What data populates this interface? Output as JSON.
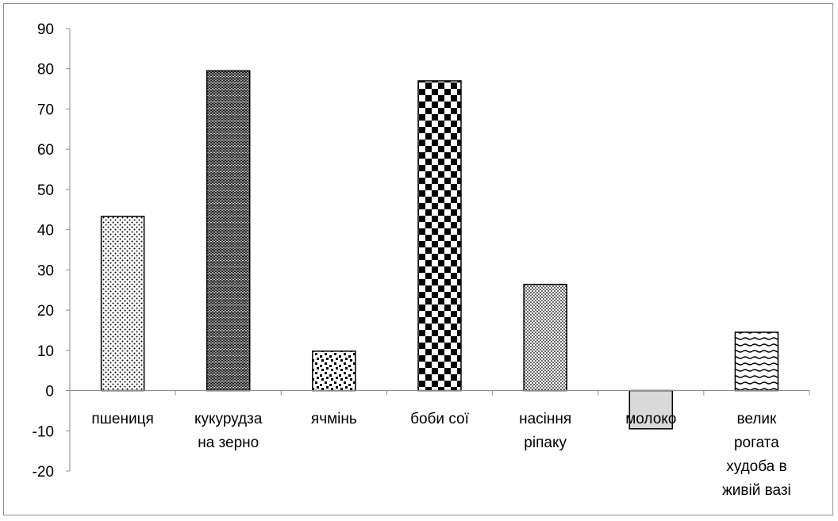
{
  "chart_data": {
    "type": "bar",
    "categories": [
      [
        "пшениця"
      ],
      [
        "кукурудза",
        "на зерно"
      ],
      [
        "ячмінь"
      ],
      [
        "боби сої"
      ],
      [
        "насіння",
        "ріпаку"
      ],
      [
        "молоко"
      ],
      [
        "велик",
        "рогата",
        "худоба в",
        "живій вазі"
      ]
    ],
    "values": [
      43.3,
      79.5,
      9.8,
      77.0,
      26.4,
      -9.5,
      14.5
    ],
    "patterns": [
      "dots-fine",
      "zigzag",
      "dots-coarse",
      "checker",
      "dots-dense",
      "gray-fill",
      "waves"
    ],
    "ylim": [
      -20,
      90
    ],
    "yticks": [
      "-20",
      "-10",
      "0",
      "10",
      "20",
      "30",
      "40",
      "50",
      "60",
      "70",
      "80",
      "90"
    ],
    "title": "",
    "xlabel": "",
    "ylabel": "",
    "grid": false,
    "legend": "none",
    "colors": {
      "bar_stroke": "#000000",
      "gray_fill": "#d9d9d9",
      "axis": "#8c8c8c"
    }
  }
}
